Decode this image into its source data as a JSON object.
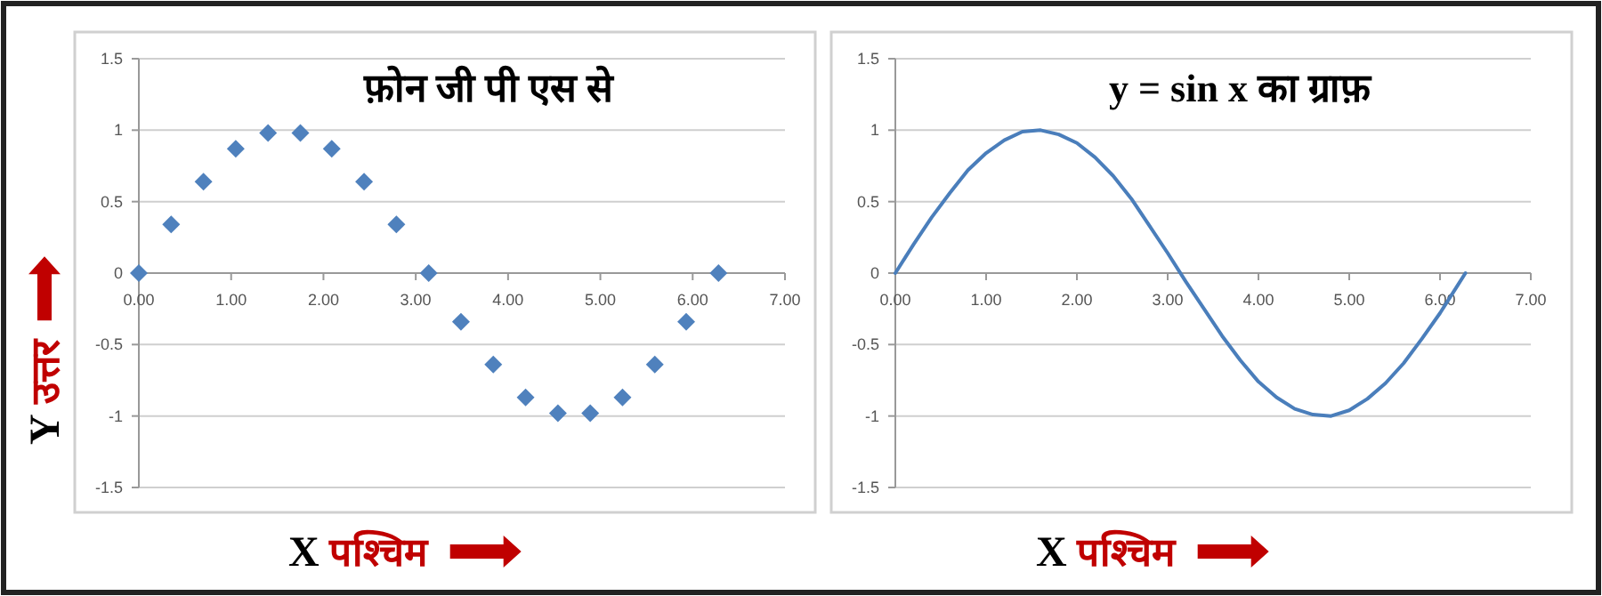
{
  "chart_data": [
    {
      "type": "scatter",
      "title": "फ़ोन जी पी एस से",
      "xlabel": "X पश्चिम",
      "ylabel": "Y उत्तर",
      "marker": "diamond",
      "grid": "y",
      "xlim": [
        0,
        7
      ],
      "xticks": [
        {
          "value": 0,
          "label": "0.00"
        },
        {
          "value": 1,
          "label": "1.00"
        },
        {
          "value": 2,
          "label": "2.00"
        },
        {
          "value": 3,
          "label": "3.00"
        },
        {
          "value": 4,
          "label": "4.00"
        },
        {
          "value": 5,
          "label": "5.00"
        },
        {
          "value": 6,
          "label": "6.00"
        },
        {
          "value": 7,
          "label": "7.00"
        }
      ],
      "ylim": [
        -1.5,
        1.5
      ],
      "yticks": [
        -1.5,
        -1,
        -0.5,
        0,
        0.5,
        1,
        1.5
      ],
      "series": [
        {
          "color": "#4f81bd",
          "x": [
            0,
            0.35,
            0.7,
            1.05,
            1.4,
            1.75,
            2.09,
            2.44,
            2.79,
            3.14,
            3.49,
            3.84,
            4.19,
            4.54,
            4.89,
            5.24,
            5.59,
            5.93,
            6.28
          ],
          "values": [
            0,
            0.34,
            0.64,
            0.87,
            0.98,
            0.98,
            0.87,
            0.64,
            0.34,
            0,
            -0.34,
            -0.64,
            -0.87,
            -0.98,
            -0.98,
            -0.87,
            -0.64,
            -0.34,
            0
          ]
        }
      ]
    },
    {
      "type": "line",
      "title": "y = sin x का ग्राफ़",
      "xlabel": "X पश्चिम",
      "grid": "y",
      "xlim": [
        0,
        7
      ],
      "xticks": [
        {
          "value": 0,
          "label": "0.00"
        },
        {
          "value": 1,
          "label": "1.00"
        },
        {
          "value": 2,
          "label": "2.00"
        },
        {
          "value": 3,
          "label": "3.00"
        },
        {
          "value": 4,
          "label": "4.00"
        },
        {
          "value": 5,
          "label": "5.00"
        },
        {
          "value": 6,
          "label": "6.00"
        },
        {
          "value": 7,
          "label": "7.00"
        }
      ],
      "ylim": [
        -1.5,
        1.5
      ],
      "yticks": [
        -1.5,
        -1,
        -0.5,
        0,
        0.5,
        1,
        1.5
      ],
      "series": [
        {
          "color": "#4a7ebb",
          "x": [
            0,
            0.2,
            0.4,
            0.6,
            0.8,
            1.0,
            1.2,
            1.4,
            1.6,
            1.8,
            2.0,
            2.2,
            2.4,
            2.6,
            2.8,
            3.0,
            3.2,
            3.4,
            3.6,
            3.8,
            4.0,
            4.2,
            4.4,
            4.6,
            4.8,
            5.0,
            5.2,
            5.4,
            5.6,
            5.8,
            6.0,
            6.2,
            6.28
          ],
          "values": [
            0,
            0.2,
            0.39,
            0.56,
            0.72,
            0.84,
            0.93,
            0.99,
            1.0,
            0.97,
            0.91,
            0.81,
            0.68,
            0.52,
            0.33,
            0.14,
            -0.06,
            -0.25,
            -0.44,
            -0.61,
            -0.76,
            -0.87,
            -0.95,
            -0.99,
            -1.0,
            -0.96,
            -0.88,
            -0.77,
            -0.63,
            -0.46,
            -0.28,
            -0.08,
            0
          ]
        }
      ]
    }
  ]
}
